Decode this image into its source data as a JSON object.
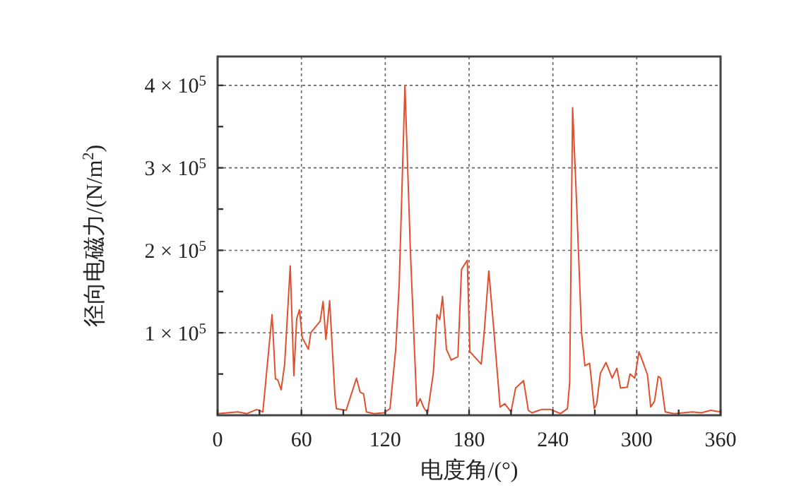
{
  "chart_data": {
    "type": "line",
    "xlabel": "电度角/(°)",
    "ylabel": "径向电磁力/(N/m$^{2}$)",
    "xlim": [
      0,
      360
    ],
    "ylim": [
      0,
      435000
    ],
    "xticks": [
      0,
      {
        "value": 30,
        "label": null
      },
      60,
      {
        "value": 90,
        "label": null
      },
      120,
      {
        "value": 150,
        "label": null
      },
      180,
      {
        "value": 210,
        "label": null
      },
      240,
      {
        "value": 270,
        "label": null
      },
      300,
      {
        "value": 330,
        "label": null
      },
      360
    ],
    "yticks": [
      {
        "value": 50000,
        "label": null
      },
      {
        "value": 100000,
        "label": "1 × 10$^{5}$"
      },
      {
        "value": 150000,
        "label": null
      },
      {
        "value": 200000,
        "label": "2 × 10$^{5}$"
      },
      {
        "value": 250000,
        "label": null
      },
      {
        "value": 300000,
        "label": "3 × 10$^{5}$"
      },
      {
        "value": 350000,
        "label": null
      },
      {
        "value": 400000,
        "label": "4 × 10$^{5}$"
      }
    ],
    "grid": true,
    "line_style": "solid",
    "marker": "none",
    "series": [
      {
        "color": "#e0502e",
        "x": [
          0,
          14.5,
          21,
          28,
          32.4,
          39,
          41.4,
          43,
          45.5,
          48,
          52,
          54.6,
          56.6,
          58.6,
          60.6,
          65,
          66.7,
          73.4,
          75.5,
          77.5,
          80.2,
          84,
          85,
          92,
          99.4,
          102,
          104.5,
          106.5,
          112,
          119,
          123.4,
          127.5,
          130,
          134.1,
          138,
          142.6,
          145,
          147.6,
          150.3,
          154.4,
          157,
          159,
          161,
          163.8,
          167.2,
          172,
          174.6,
          178.7,
          180.6,
          188.7,
          190.8,
          194.1,
          197.5,
          202.2,
          205.6,
          210,
          213.3,
          219,
          222.4,
          225,
          231.8,
          238.6,
          245.4,
          250.4,
          252,
          254.1,
          257.1,
          260.5,
          262.9,
          266.3,
          269.6,
          271.3,
          274,
          278,
          282.4,
          285.8,
          288.4,
          293.2,
          295.2,
          298.6,
          301.6,
          304.3,
          307.7,
          310,
          312.7,
          315.4,
          317.1,
          320.4,
          326.8,
          339.6,
          346.3,
          353,
          359.8
        ],
        "values": [
          2000,
          4000,
          2000,
          7000,
          4000,
          122000,
          44000,
          43000,
          31000,
          62000,
          181000,
          48000,
          117000,
          128000,
          94000,
          80000,
          100000,
          114000,
          138000,
          92000,
          139000,
          24000,
          8000,
          6000,
          45000,
          28000,
          26000,
          4000,
          2000,
          3000,
          8000,
          80000,
          159000,
          400000,
          199000,
          11000,
          20000,
          9000,
          3000,
          51000,
          122000,
          116000,
          144000,
          80000,
          67000,
          71000,
          177000,
          188000,
          77000,
          62000,
          100000,
          175000,
          108000,
          10000,
          14000,
          4000,
          33000,
          42000,
          6000,
          3000,
          7000,
          7000,
          2000,
          8000,
          40000,
          373000,
          251000,
          100000,
          60000,
          63000,
          8000,
          14000,
          51000,
          64000,
          45000,
          57000,
          33000,
          34000,
          50000,
          45000,
          77000,
          65000,
          49000,
          10000,
          17000,
          47000,
          45000,
          4000,
          2000,
          4000,
          3000,
          6000,
          4000
        ]
      }
    ]
  }
}
